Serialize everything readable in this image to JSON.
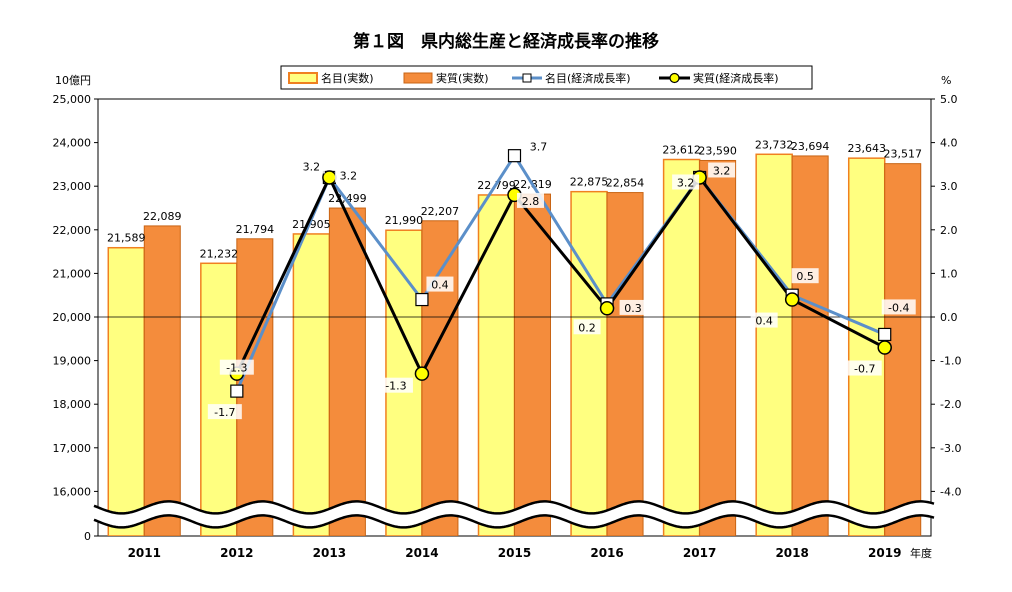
{
  "chart_data": {
    "type": "bar",
    "title": "第１図　県内総生産と経済成長率の推移",
    "categories": [
      "2011",
      "2012",
      "2013",
      "2014",
      "2015",
      "2016",
      "2017",
      "2018",
      "2019"
    ],
    "xlabel": "年度",
    "y_left": {
      "label": "10億円",
      "ticks": [
        "25,000",
        "24,000",
        "23,000",
        "22,000",
        "21,000",
        "20,000",
        "19,000",
        "18,000",
        "17,000",
        "16,000",
        "0"
      ],
      "ylim": [
        15000,
        25000
      ],
      "axis_break": true
    },
    "y_right": {
      "label": "%",
      "ticks": [
        "5.0",
        "4.0",
        "3.0",
        "2.0",
        "1.0",
        "0.0",
        "-1.0",
        "-2.0",
        "-3.0",
        "-4.0"
      ],
      "ylim": [
        -5.0,
        5.0
      ]
    },
    "legend_placement": "top-center",
    "colors": {
      "nominal_bar": "#ffff80",
      "nominal_bar_edge": "#f08020",
      "real_bar": "#f48c3c",
      "real_bar_edge": "#c86414",
      "nominal_line": "#5b8fc9",
      "real_line": "#000000",
      "real_marker": "#ffff00"
    },
    "series": [
      {
        "name": "名目(実数)",
        "kind": "bar",
        "axis": "left",
        "values": [
          21589,
          21232,
          21905,
          21990,
          22799,
          22875,
          23612,
          23732,
          23643
        ],
        "labels": [
          "21,589",
          "21,232",
          "21,905",
          "21,990",
          "22,799",
          "22,875",
          "23,612",
          "23,732",
          "23,643"
        ]
      },
      {
        "name": "実質(実数)",
        "kind": "bar",
        "axis": "left",
        "values": [
          22089,
          21794,
          22499,
          22207,
          22819,
          22854,
          23590,
          23694,
          23517
        ],
        "labels": [
          "22,089",
          "21,794",
          "22,499",
          "22,207",
          "22,819",
          "22,854",
          "23,590",
          "23,694",
          "23,517"
        ]
      },
      {
        "name": "名目(経済成長率)",
        "kind": "line",
        "axis": "right",
        "values": [
          null,
          -1.7,
          3.2,
          0.4,
          3.7,
          0.3,
          3.2,
          0.5,
          -0.4
        ],
        "labels": [
          "",
          "-1.7",
          "3.2",
          "0.4",
          "3.7",
          "0.3",
          "3.2",
          "0.5",
          "-0.4"
        ]
      },
      {
        "name": "実質(経済成長率)",
        "kind": "line",
        "axis": "right",
        "values": [
          null,
          -1.3,
          3.2,
          -1.3,
          2.8,
          0.2,
          3.2,
          0.4,
          -0.7
        ],
        "labels": [
          "",
          "-1.3",
          "3.2",
          "-1.3",
          "2.8",
          "0.2",
          "3.2",
          "0.4",
          "-0.7"
        ]
      }
    ]
  }
}
